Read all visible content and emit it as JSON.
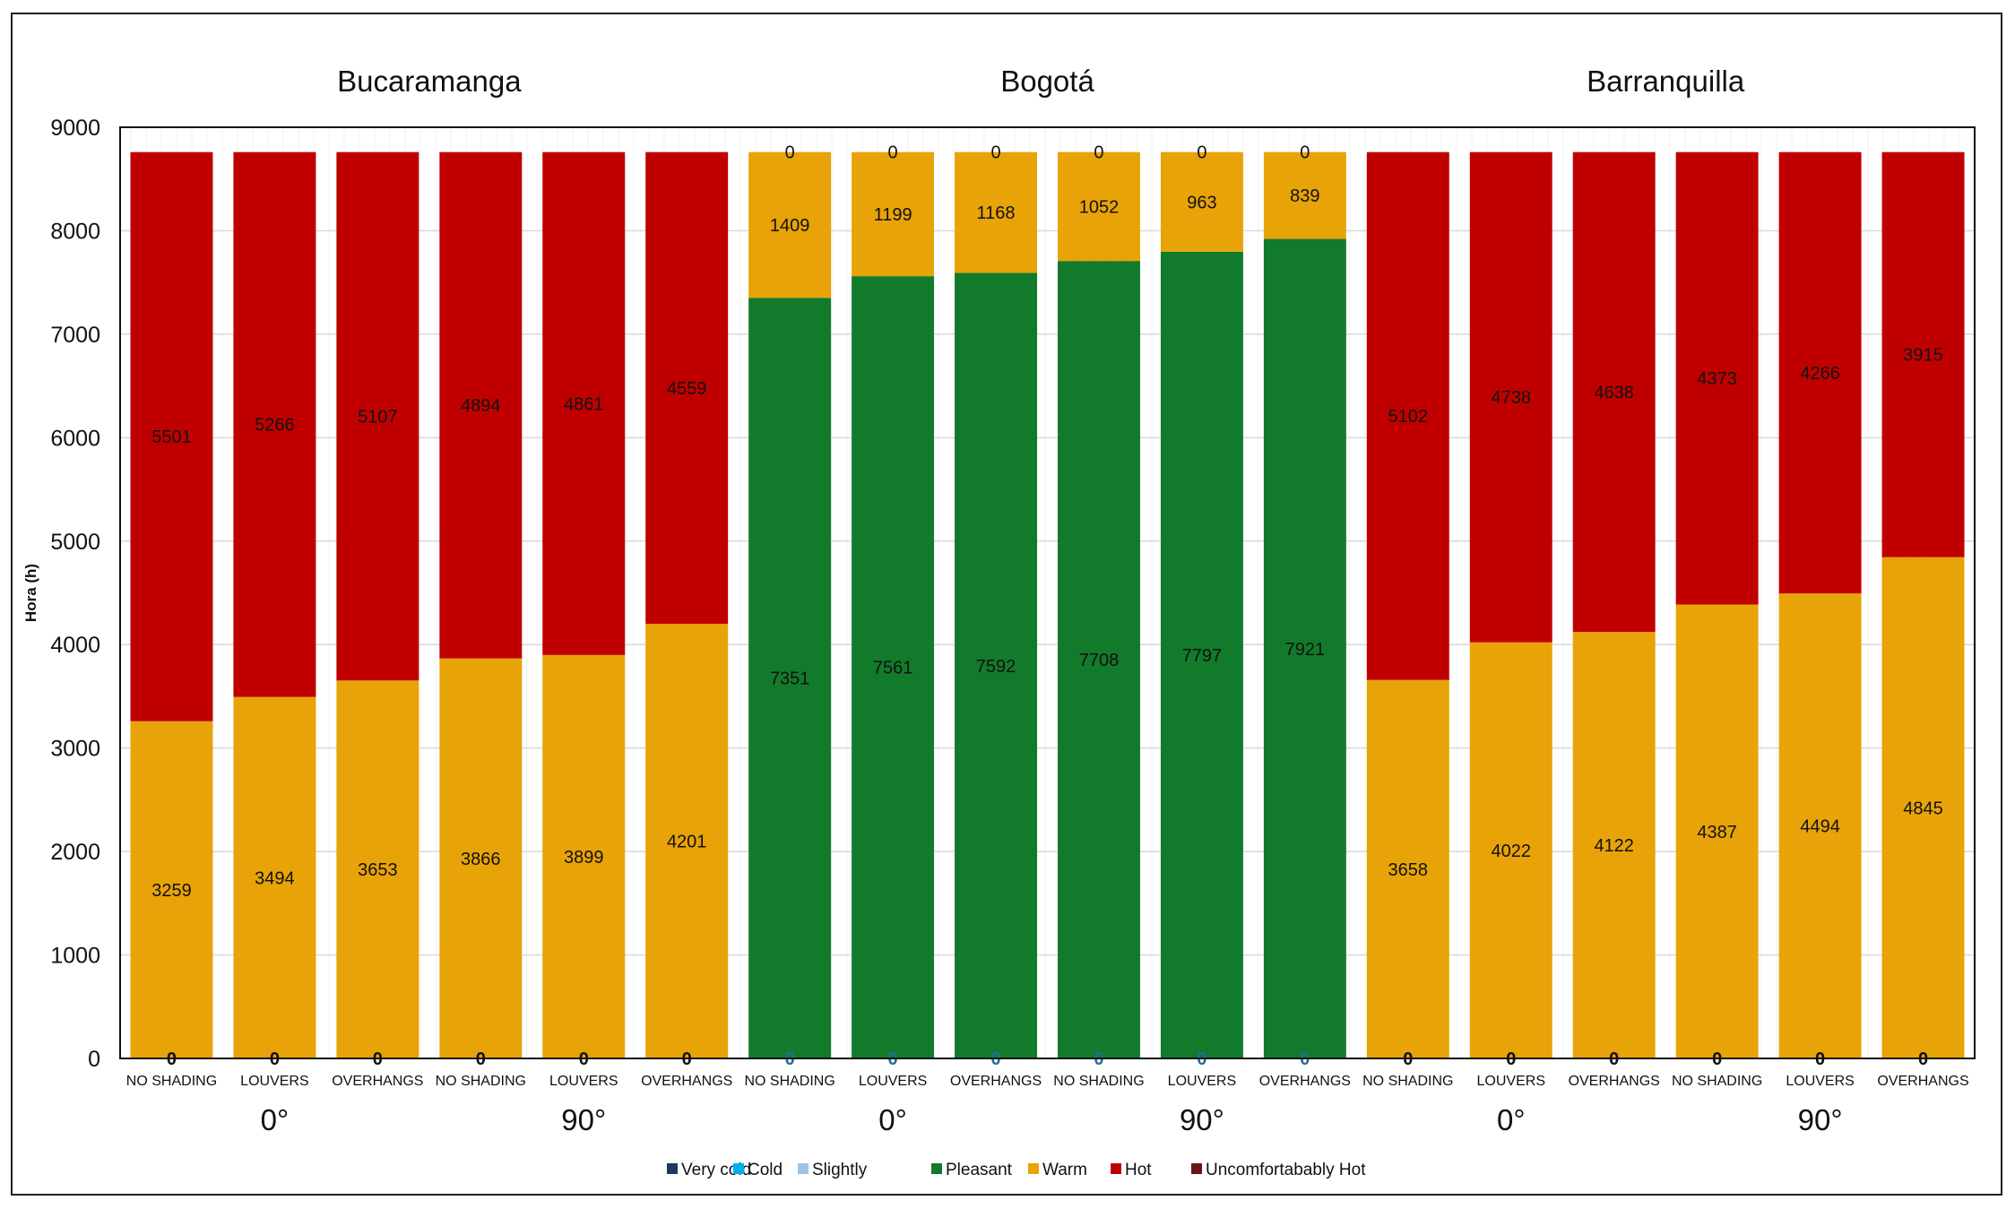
{
  "chart_data": {
    "type": "bar",
    "stacked": true,
    "ylabel": "Hora (h)",
    "ylim": [
      0,
      9000
    ],
    "yticks": [
      0,
      1000,
      2000,
      3000,
      4000,
      5000,
      6000,
      7000,
      8000,
      9000
    ],
    "grid": true,
    "legend_position": "bottom",
    "groups": [
      {
        "city": "Bucaramanga",
        "angles": [
          "0°",
          "90°"
        ]
      },
      {
        "city": "Bogotá",
        "angles": [
          "0°",
          "90°"
        ]
      },
      {
        "city": "Barranquilla",
        "angles": [
          "0°",
          "90°"
        ]
      }
    ],
    "categories": [
      "NO SHADING",
      "LOUVERS",
      "OVERHANGS",
      "NO SHADING",
      "LOUVERS",
      "OVERHANGS",
      "NO SHADING",
      "LOUVERS",
      "OVERHANGS",
      "NO SHADING",
      "LOUVERS",
      "OVERHANGS",
      "NO SHADING",
      "LOUVERS",
      "OVERHANGS",
      "NO SHADING",
      "LOUVERS",
      "OVERHANGS"
    ],
    "series": [
      {
        "name": "Very cold",
        "color": "#1f3864",
        "values": [
          0,
          0,
          0,
          0,
          0,
          0,
          0,
          0,
          0,
          0,
          0,
          0,
          0,
          0,
          0,
          0,
          0,
          0
        ]
      },
      {
        "name": "Cold",
        "color": "#00b0f0",
        "values": [
          0,
          0,
          0,
          0,
          0,
          0,
          0,
          0,
          0,
          0,
          0,
          0,
          0,
          0,
          0,
          0,
          0,
          0
        ]
      },
      {
        "name": "Slightly",
        "color": "#9dc3e6",
        "values": [
          0,
          0,
          0,
          0,
          0,
          0,
          0,
          0,
          0,
          0,
          0,
          0,
          0,
          0,
          0,
          0,
          0,
          0
        ]
      },
      {
        "name": "Pleasant",
        "color": "#127a2b",
        "values": [
          0,
          0,
          0,
          0,
          0,
          0,
          7351,
          7561,
          7592,
          7708,
          7797,
          7921,
          0,
          0,
          0,
          0,
          0,
          0
        ]
      },
      {
        "name": "Warm",
        "color": "#e8a308",
        "values": [
          3259,
          3494,
          3653,
          3866,
          3899,
          4201,
          1409,
          1199,
          1168,
          1052,
          963,
          839,
          3658,
          4022,
          4122,
          4387,
          4494,
          4845
        ]
      },
      {
        "name": "Hot",
        "color": "#c00000",
        "values": [
          5501,
          5266,
          5107,
          4894,
          4861,
          4559,
          0,
          0,
          0,
          0,
          0,
          0,
          5102,
          4738,
          4638,
          4373,
          4266,
          3915
        ]
      },
      {
        "name": "Uncomfortabably Hot",
        "color": "#6b1515",
        "values": [
          0,
          0,
          0,
          0,
          0,
          0,
          0,
          0,
          0,
          0,
          0,
          0,
          0,
          0,
          0,
          0,
          0,
          0
        ]
      }
    ]
  }
}
